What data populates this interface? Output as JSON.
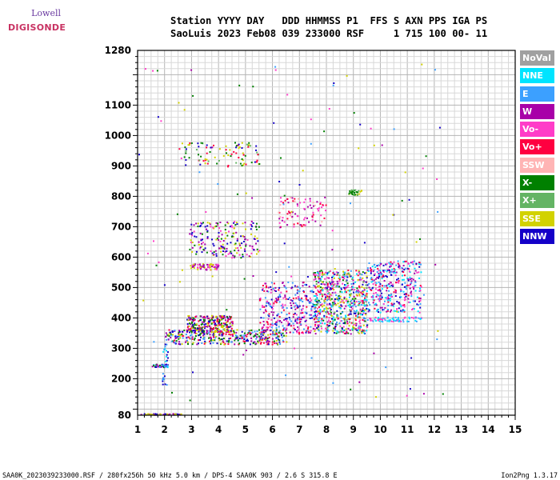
{
  "logo": {
    "line1": "Lowell",
    "line2": "DIGISONDE"
  },
  "header": {
    "line1": "Station YYYY DAY   DDD HHMMSS P1  FFS S AXN PPS IGA PS",
    "line2": "SaoLuis 2023 Feb08 039 233000 RSF     1 715 100 00- 11"
  },
  "legend": [
    {
      "label": "NoVal",
      "color": "#a0a0a0"
    },
    {
      "label": "NNE",
      "color": "#00e4ff"
    },
    {
      "label": "E",
      "color": "#3ca0ff"
    },
    {
      "label": "W",
      "color": "#a800a8"
    },
    {
      "label": "Vo-",
      "color": "#ff3cc8"
    },
    {
      "label": "Vo+",
      "color": "#ff0040"
    },
    {
      "label": "SSW",
      "color": "#ffb4b4"
    },
    {
      "label": "X-",
      "color": "#008000"
    },
    {
      "label": "X+",
      "color": "#64b464"
    },
    {
      "label": "SSE",
      "color": "#d2d200"
    },
    {
      "label": "NNW",
      "color": "#1400c8"
    }
  ],
  "footer": {
    "left": "SAA0K_2023039233000.RSF / 280fx256h 50 kHz 5.0 km / DPS-4 SAA0K 903 / 2.6 S 315.8 E",
    "right": "Ion2Png 1.3.17"
  },
  "chart_data": {
    "type": "scatter",
    "x_ticks": [
      1,
      2,
      3,
      4,
      5,
      6,
      7,
      8,
      9,
      10,
      11,
      12,
      13,
      14,
      15
    ],
    "y_ticks": [
      80,
      200,
      300,
      400,
      500,
      600,
      700,
      800,
      900,
      1000,
      1100,
      1280
    ],
    "xlim": [
      1,
      15
    ],
    "ylim": [
      80,
      1280
    ],
    "grid": true,
    "legend_position": "right",
    "clusters": [
      {
        "x": [
          1.1,
          2.6
        ],
        "y": [
          83,
          87
        ],
        "n": 60,
        "colors": [
          "#1400c8",
          "#a800a8",
          "#d2d200"
        ]
      },
      {
        "x": [
          1.5,
          2.1
        ],
        "y": [
          240,
          250
        ],
        "n": 45,
        "colors": [
          "#1400c8",
          "#3ca0ff",
          "#008000",
          "#a800a8"
        ]
      },
      {
        "x": [
          1.9,
          2.1
        ],
        "y": [
          180,
          320
        ],
        "n": 25,
        "colors": [
          "#3ca0ff",
          "#00e4ff",
          "#1400c8"
        ]
      },
      {
        "x": [
          2.0,
          6.5
        ],
        "y": [
          315,
          365
        ],
        "n": 360,
        "colors": [
          "#1400c8",
          "#a800a8",
          "#3ca0ff",
          "#ff0040",
          "#d2d200",
          "#008000"
        ]
      },
      {
        "x": [
          2.8,
          4.5
        ],
        "y": [
          355,
          410
        ],
        "n": 260,
        "colors": [
          "#a800a8",
          "#1400c8",
          "#ff0040",
          "#d2d200",
          "#008000"
        ]
      },
      {
        "x": [
          2.5,
          5.5
        ],
        "y": [
          900,
          980
        ],
        "n": 90,
        "colors": [
          "#d2d200",
          "#64b464",
          "#008000",
          "#1400c8",
          "#ff0040"
        ]
      },
      {
        "x": [
          2.9,
          4.0
        ],
        "y": [
          560,
          580
        ],
        "n": 60,
        "colors": [
          "#a800a8",
          "#ff3cc8",
          "#d2d200"
        ]
      },
      {
        "x": [
          2.9,
          5.5
        ],
        "y": [
          600,
          720
        ],
        "n": 200,
        "colors": [
          "#a800a8",
          "#ff3cc8",
          "#d2d200",
          "#008000",
          "#1400c8"
        ]
      },
      {
        "x": [
          5.5,
          7.5
        ],
        "y": [
          350,
          520
        ],
        "n": 300,
        "colors": [
          "#a800a8",
          "#ff0040",
          "#ff3cc8",
          "#1400c8",
          "#3ca0ff"
        ]
      },
      {
        "x": [
          6.2,
          8.0
        ],
        "y": [
          700,
          800
        ],
        "n": 90,
        "colors": [
          "#ff3cc8",
          "#a800a8",
          "#ff0040",
          "#ffb4b4"
        ]
      },
      {
        "x": [
          7.5,
          9.5
        ],
        "y": [
          350,
          560
        ],
        "n": 700,
        "colors": [
          "#ff0040",
          "#ff3cc8",
          "#00e4ff",
          "#3ca0ff",
          "#008000",
          "#a800a8",
          "#d2d200",
          "#1400c8",
          "#64b464"
        ]
      },
      {
        "x": [
          8.8,
          9.3
        ],
        "y": [
          805,
          825
        ],
        "n": 30,
        "colors": [
          "#008000",
          "#64b464",
          "#d2d200"
        ]
      },
      {
        "x": [
          9.5,
          11.5
        ],
        "y": [
          420,
          590
        ],
        "n": 350,
        "colors": [
          "#ff0040",
          "#ff3cc8",
          "#00e4ff",
          "#3ca0ff",
          "#a800a8",
          "#1400c8"
        ]
      },
      {
        "x": [
          9.5,
          11.5
        ],
        "y": [
          390,
          405
        ],
        "n": 70,
        "colors": [
          "#00e4ff",
          "#3ca0ff",
          "#ff3cc8"
        ]
      },
      {
        "x": [
          1.0,
          12.3
        ],
        "y": [
          120,
          1240
        ],
        "n": 120,
        "colors": [
          "#a800a8",
          "#ff3cc8",
          "#1400c8",
          "#3ca0ff",
          "#d2d200",
          "#008000"
        ]
      }
    ]
  }
}
